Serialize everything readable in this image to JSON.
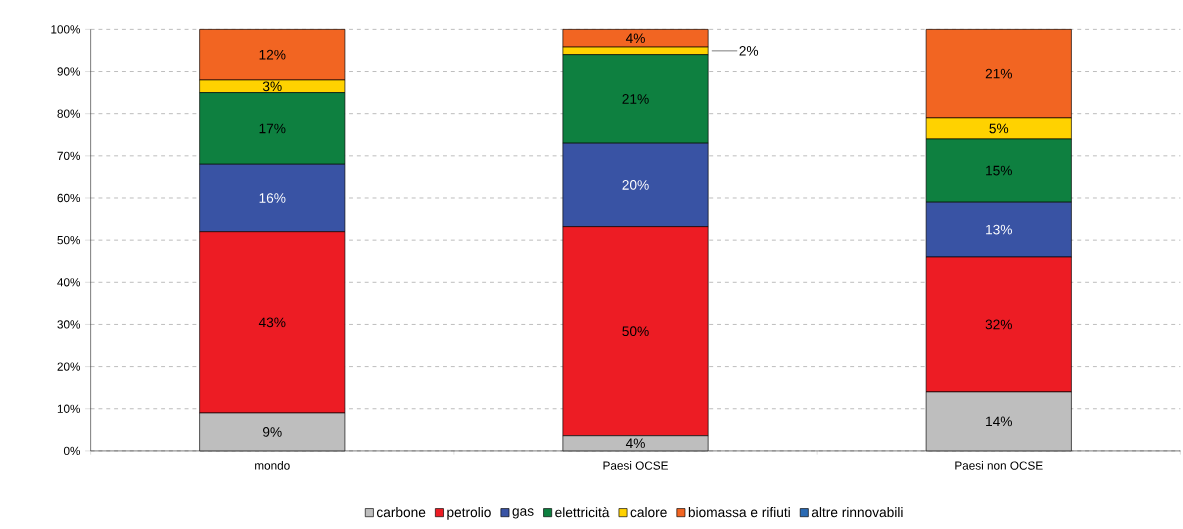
{
  "chart_data": {
    "type": "bar",
    "stacked": true,
    "categories": [
      "mondo",
      "Paesi OCSE",
      "Paesi non OCSE"
    ],
    "series": [
      {
        "name": "carbone",
        "color": "#bebebe",
        "values": [
          9,
          3.6,
          14
        ],
        "value_labels": [
          "9%",
          "4%",
          "14%"
        ]
      },
      {
        "name": "petrolio",
        "color": "#ed1c24",
        "values": [
          43,
          49.6,
          32
        ],
        "value_labels": [
          "43%",
          "50%",
          "32%"
        ]
      },
      {
        "name": "gas",
        "color": "#3953a4",
        "values": [
          16,
          19.8,
          13
        ],
        "value_labels": [
          "16%",
          "20%",
          "13%"
        ]
      },
      {
        "name": "elettricità",
        "color": "#0e8040",
        "values": [
          17,
          21.0,
          15
        ],
        "value_labels": [
          "17%",
          "21%",
          "15%"
        ]
      },
      {
        "name": "calore",
        "color": "#ffd200",
        "values": [
          3,
          1.8,
          5
        ],
        "value_labels": [
          "3%",
          "2%",
          "5%"
        ]
      },
      {
        "name": "biomassa e rifiuti",
        "color": "#f26522",
        "values": [
          12,
          4.2,
          21
        ],
        "value_labels": [
          "12%",
          "4%",
          "21%"
        ]
      },
      {
        "name": "altre rinnovabili",
        "color": "#2a6ab3",
        "values": [
          0,
          0,
          0
        ],
        "value_labels": [
          null,
          null,
          null
        ]
      }
    ],
    "ylim": [
      0,
      100
    ],
    "yticks": [
      {
        "value": 0,
        "label": "0%"
      },
      {
        "value": 10,
        "label": "10%"
      },
      {
        "value": 20,
        "label": "20%"
      },
      {
        "value": 30,
        "label": "30%"
      },
      {
        "value": 40,
        "label": "40%"
      },
      {
        "value": 50,
        "label": "50%"
      },
      {
        "value": 60,
        "label": "60%"
      },
      {
        "value": 70,
        "label": "70%"
      },
      {
        "value": 80,
        "label": "80%"
      },
      {
        "value": 90,
        "label": "90%"
      },
      {
        "value": 100,
        "label": "100%"
      }
    ],
    "grid": "y",
    "legend": "bottom"
  }
}
